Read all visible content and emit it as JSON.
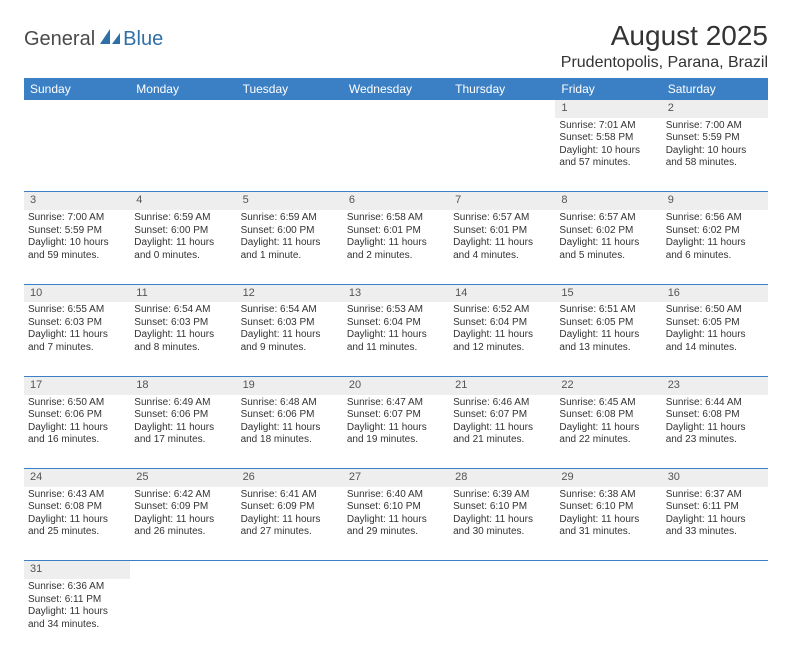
{
  "logo": {
    "text1": "General",
    "text2": "Blue"
  },
  "title": "August 2025",
  "location": "Prudentopolis, Parana, Brazil",
  "colors": {
    "header_bg": "#3b7fc4",
    "header_fg": "#ffffff",
    "daynum_bg": "#eeeeee",
    "rule": "#3b7fc4",
    "logo_blue": "#2f6fa8"
  },
  "weekdays": [
    "Sunday",
    "Monday",
    "Tuesday",
    "Wednesday",
    "Thursday",
    "Friday",
    "Saturday"
  ],
  "days": {
    "1": {
      "sunrise": "7:01 AM",
      "sunset": "5:58 PM",
      "daylight": "10 hours and 57 minutes."
    },
    "2": {
      "sunrise": "7:00 AM",
      "sunset": "5:59 PM",
      "daylight": "10 hours and 58 minutes."
    },
    "3": {
      "sunrise": "7:00 AM",
      "sunset": "5:59 PM",
      "daylight": "10 hours and 59 minutes."
    },
    "4": {
      "sunrise": "6:59 AM",
      "sunset": "6:00 PM",
      "daylight": "11 hours and 0 minutes."
    },
    "5": {
      "sunrise": "6:59 AM",
      "sunset": "6:00 PM",
      "daylight": "11 hours and 1 minute."
    },
    "6": {
      "sunrise": "6:58 AM",
      "sunset": "6:01 PM",
      "daylight": "11 hours and 2 minutes."
    },
    "7": {
      "sunrise": "6:57 AM",
      "sunset": "6:01 PM",
      "daylight": "11 hours and 4 minutes."
    },
    "8": {
      "sunrise": "6:57 AM",
      "sunset": "6:02 PM",
      "daylight": "11 hours and 5 minutes."
    },
    "9": {
      "sunrise": "6:56 AM",
      "sunset": "6:02 PM",
      "daylight": "11 hours and 6 minutes."
    },
    "10": {
      "sunrise": "6:55 AM",
      "sunset": "6:03 PM",
      "daylight": "11 hours and 7 minutes."
    },
    "11": {
      "sunrise": "6:54 AM",
      "sunset": "6:03 PM",
      "daylight": "11 hours and 8 minutes."
    },
    "12": {
      "sunrise": "6:54 AM",
      "sunset": "6:03 PM",
      "daylight": "11 hours and 9 minutes."
    },
    "13": {
      "sunrise": "6:53 AM",
      "sunset": "6:04 PM",
      "daylight": "11 hours and 11 minutes."
    },
    "14": {
      "sunrise": "6:52 AM",
      "sunset": "6:04 PM",
      "daylight": "11 hours and 12 minutes."
    },
    "15": {
      "sunrise": "6:51 AM",
      "sunset": "6:05 PM",
      "daylight": "11 hours and 13 minutes."
    },
    "16": {
      "sunrise": "6:50 AM",
      "sunset": "6:05 PM",
      "daylight": "11 hours and 14 minutes."
    },
    "17": {
      "sunrise": "6:50 AM",
      "sunset": "6:06 PM",
      "daylight": "11 hours and 16 minutes."
    },
    "18": {
      "sunrise": "6:49 AM",
      "sunset": "6:06 PM",
      "daylight": "11 hours and 17 minutes."
    },
    "19": {
      "sunrise": "6:48 AM",
      "sunset": "6:06 PM",
      "daylight": "11 hours and 18 minutes."
    },
    "20": {
      "sunrise": "6:47 AM",
      "sunset": "6:07 PM",
      "daylight": "11 hours and 19 minutes."
    },
    "21": {
      "sunrise": "6:46 AM",
      "sunset": "6:07 PM",
      "daylight": "11 hours and 21 minutes."
    },
    "22": {
      "sunrise": "6:45 AM",
      "sunset": "6:08 PM",
      "daylight": "11 hours and 22 minutes."
    },
    "23": {
      "sunrise": "6:44 AM",
      "sunset": "6:08 PM",
      "daylight": "11 hours and 23 minutes."
    },
    "24": {
      "sunrise": "6:43 AM",
      "sunset": "6:08 PM",
      "daylight": "11 hours and 25 minutes."
    },
    "25": {
      "sunrise": "6:42 AM",
      "sunset": "6:09 PM",
      "daylight": "11 hours and 26 minutes."
    },
    "26": {
      "sunrise": "6:41 AM",
      "sunset": "6:09 PM",
      "daylight": "11 hours and 27 minutes."
    },
    "27": {
      "sunrise": "6:40 AM",
      "sunset": "6:10 PM",
      "daylight": "11 hours and 29 minutes."
    },
    "28": {
      "sunrise": "6:39 AM",
      "sunset": "6:10 PM",
      "daylight": "11 hours and 30 minutes."
    },
    "29": {
      "sunrise": "6:38 AM",
      "sunset": "6:10 PM",
      "daylight": "11 hours and 31 minutes."
    },
    "30": {
      "sunrise": "6:37 AM",
      "sunset": "6:11 PM",
      "daylight": "11 hours and 33 minutes."
    },
    "31": {
      "sunrise": "6:36 AM",
      "sunset": "6:11 PM",
      "daylight": "11 hours and 34 minutes."
    }
  },
  "labels": {
    "sunrise": "Sunrise:",
    "sunset": "Sunset:",
    "daylight": "Daylight:"
  },
  "grid": [
    [
      null,
      null,
      null,
      null,
      null,
      "1",
      "2"
    ],
    [
      "3",
      "4",
      "5",
      "6",
      "7",
      "8",
      "9"
    ],
    [
      "10",
      "11",
      "12",
      "13",
      "14",
      "15",
      "16"
    ],
    [
      "17",
      "18",
      "19",
      "20",
      "21",
      "22",
      "23"
    ],
    [
      "24",
      "25",
      "26",
      "27",
      "28",
      "29",
      "30"
    ],
    [
      "31",
      null,
      null,
      null,
      null,
      null,
      null
    ]
  ]
}
